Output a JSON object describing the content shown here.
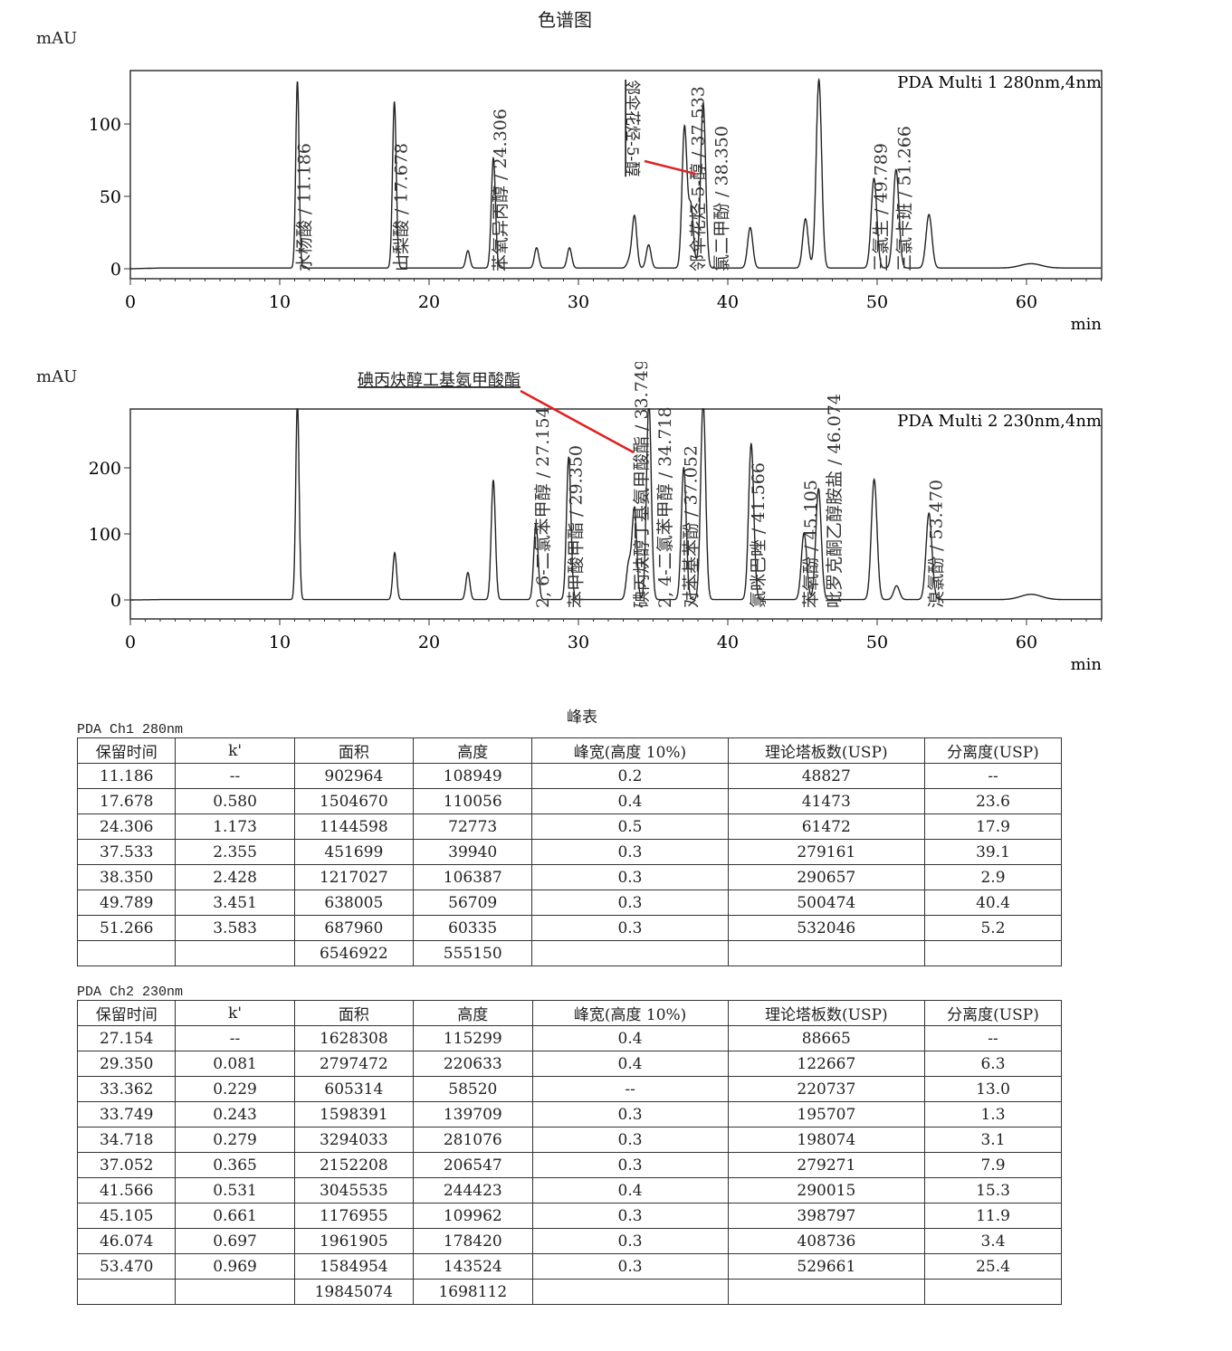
{
  "page_title": "色谱图",
  "chart_data": [
    {
      "type": "line",
      "ylabel": "mAU",
      "xlabel": "min",
      "channel": "PDA Multi 1 280nm,4nm",
      "xlim": [
        0,
        65
      ],
      "ylim": [
        -5,
        135
      ],
      "xticks": [
        0,
        10,
        20,
        30,
        40,
        50,
        60
      ],
      "yticks": [
        0,
        50,
        100
      ],
      "peaks": [
        [
          11.186,
          129
        ],
        [
          17.678,
          115
        ],
        [
          22.6,
          12
        ],
        [
          24.306,
          76
        ],
        [
          27.2,
          14
        ],
        [
          29.4,
          14
        ],
        [
          33.4,
          5
        ],
        [
          33.75,
          36
        ],
        [
          34.7,
          16
        ],
        [
          37.1,
          97
        ],
        [
          37.533,
          42
        ],
        [
          38.35,
          114
        ],
        [
          41.5,
          28
        ],
        [
          45.2,
          34
        ],
        [
          46.1,
          130
        ],
        [
          49.789,
          62
        ],
        [
          51.266,
          68
        ],
        [
          53.47,
          37
        ]
      ],
      "labels": [
        {
          "rt": 11.186,
          "text": "水杨酸 / 11.186"
        },
        {
          "rt": 17.678,
          "text": "山梨酸 / 17.678"
        },
        {
          "rt": 24.306,
          "text": "苯氧异丙醇 / 24.306"
        },
        {
          "rt": 37.533,
          "text": "邻伞花烃-5-醇 / 37.533"
        },
        {
          "rt": 38.35,
          "text": "氯二甲酚 / 38.350"
        },
        {
          "rt": 49.789,
          "text": "三氯生 / 49.789"
        },
        {
          "rt": 51.266,
          "text": "三氯卡班 / 51.266"
        }
      ],
      "annotation": "邻伞花烃-5-醇"
    },
    {
      "type": "line",
      "ylabel": "mAU",
      "xlabel": "min",
      "channel": "PDA Multi 2 230nm,4nm",
      "xlim": [
        0,
        65
      ],
      "ylim": [
        -30,
        290
      ],
      "xticks": [
        0,
        10,
        20,
        30,
        40,
        50,
        60
      ],
      "yticks": [
        0,
        100,
        200
      ],
      "peaks": [
        [
          11.186,
          300
        ],
        [
          17.7,
          71
        ],
        [
          22.6,
          41
        ],
        [
          24.3,
          181
        ],
        [
          27.154,
          115
        ],
        [
          29.35,
          216
        ],
        [
          33.362,
          53
        ],
        [
          33.749,
          137
        ],
        [
          34.718,
          300
        ],
        [
          37.052,
          200
        ],
        [
          38.35,
          300
        ],
        [
          41.566,
          236
        ],
        [
          45.105,
          101
        ],
        [
          46.074,
          168
        ],
        [
          49.8,
          182
        ],
        [
          51.3,
          21
        ],
        [
          53.47,
          131
        ]
      ],
      "labels": [
        {
          "rt": 27.154,
          "text": "2, 6-二氯苯甲醇 / 27.154"
        },
        {
          "rt": 29.35,
          "text": "苯甲酸甲酯 / 29.350"
        },
        {
          "rt": 33.749,
          "text": "碘丙炔醇丁基氨甲酸酯 / 33.749"
        },
        {
          "rt": 34.718,
          "text": "2, 4-二氯苯甲醇 / 34.718"
        },
        {
          "rt": 37.052,
          "text": "对苯基苯酚 / 37.052"
        },
        {
          "rt": 41.566,
          "text": "氯咪巴唑 / 41.566"
        },
        {
          "rt": 45.105,
          "text": "苯氧酚 / 45.105"
        },
        {
          "rt": 46.074,
          "text": "吡罗克酮乙醇胺盐 / 46.074"
        },
        {
          "rt": 53.47,
          "text": "溴氯酚 / 53.470"
        }
      ],
      "annotation": "碘丙炔醇工基氨甲酸酯"
    }
  ],
  "peak_table_title": "峰表",
  "tables": [
    {
      "caption": "PDA Ch1 280nm",
      "headers": [
        "保留时间",
        "k'",
        "面积",
        "高度",
        "峰宽(高度 10%)",
        "理论塔板数(USP)",
        "分离度(USP)"
      ],
      "rows": [
        [
          "11.186",
          "--",
          "902964",
          "108949",
          "0.2",
          "48827",
          "--"
        ],
        [
          "17.678",
          "0.580",
          "1504670",
          "110056",
          "0.4",
          "41473",
          "23.6"
        ],
        [
          "24.306",
          "1.173",
          "1144598",
          "72773",
          "0.5",
          "61472",
          "17.9"
        ],
        [
          "37.533",
          "2.355",
          "451699",
          "39940",
          "0.3",
          "279161",
          "39.1"
        ],
        [
          "38.350",
          "2.428",
          "1217027",
          "106387",
          "0.3",
          "290657",
          "2.9"
        ],
        [
          "49.789",
          "3.451",
          "638005",
          "56709",
          "0.3",
          "500474",
          "40.4"
        ],
        [
          "51.266",
          "3.583",
          "687960",
          "60335",
          "0.3",
          "532046",
          "5.2"
        ],
        [
          "",
          "",
          "6546922",
          "555150",
          "",
          "",
          ""
        ]
      ]
    },
    {
      "caption": "PDA Ch2 230nm",
      "headers": [
        "保留时间",
        "k'",
        "面积",
        "高度",
        "峰宽(高度 10%)",
        "理论塔板数(USP)",
        "分离度(USP)"
      ],
      "rows": [
        [
          "27.154",
          "--",
          "1628308",
          "115299",
          "0.4",
          "88665",
          "--"
        ],
        [
          "29.350",
          "0.081",
          "2797472",
          "220633",
          "0.4",
          "122667",
          "6.3"
        ],
        [
          "33.362",
          "0.229",
          "605314",
          "58520",
          "--",
          "220737",
          "13.0"
        ],
        [
          "33.749",
          "0.243",
          "1598391",
          "139709",
          "0.3",
          "195707",
          "1.3"
        ],
        [
          "34.718",
          "0.279",
          "3294033",
          "281076",
          "0.3",
          "198074",
          "3.1"
        ],
        [
          "37.052",
          "0.365",
          "2152208",
          "206547",
          "0.3",
          "279271",
          "7.9"
        ],
        [
          "41.566",
          "0.531",
          "3045535",
          "244423",
          "0.4",
          "290015",
          "15.3"
        ],
        [
          "45.105",
          "0.661",
          "1176955",
          "109962",
          "0.3",
          "398797",
          "11.9"
        ],
        [
          "46.074",
          "0.697",
          "1961905",
          "178420",
          "0.3",
          "408736",
          "3.4"
        ],
        [
          "53.470",
          "0.969",
          "1584954",
          "143524",
          "0.3",
          "529661",
          "25.4"
        ],
        [
          "",
          "",
          "19845074",
          "1698112",
          "",
          "",
          ""
        ]
      ]
    }
  ],
  "colors": {
    "trace": "#222222",
    "arrow": "#e02020"
  }
}
